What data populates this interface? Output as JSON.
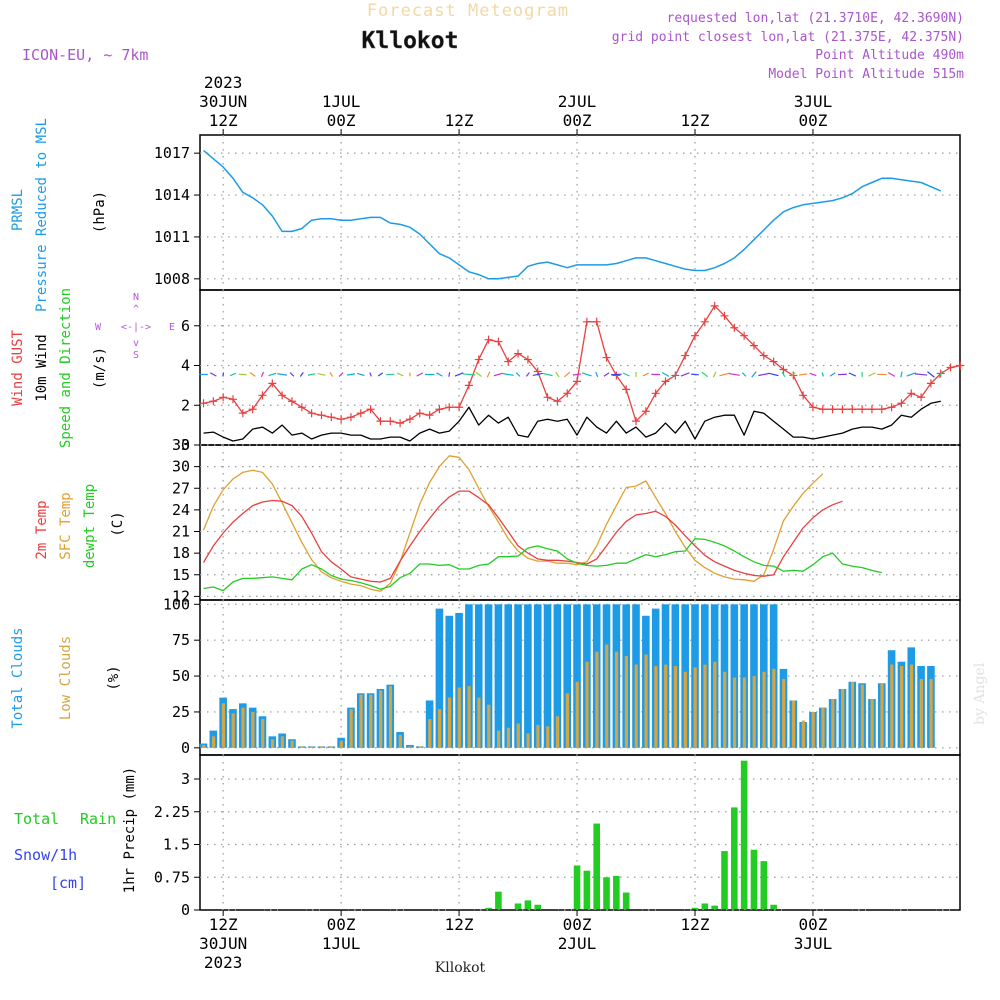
{
  "header": {
    "title": "Forecast Meteogram",
    "location": "Kllokot",
    "model": "ICON-EU, ~ 7km",
    "requested": "requested lon,lat (21.3710E, 42.3690N)",
    "grid_point": "grid point closest lon,lat (21.375E, 42.375N)",
    "point_altitude": "Point Altitude 490m",
    "model_altitude": "Model Point Altitude 515m"
  },
  "footer": {
    "location": "Kllokot",
    "credit": "by Angel"
  },
  "time_axis": {
    "top": [
      {
        "idx": 2,
        "lines": [
          "2023",
          "30JUN",
          "12Z"
        ]
      },
      {
        "idx": 14,
        "lines": [
          "1JUL",
          "00Z"
        ]
      },
      {
        "idx": 26,
        "lines": [
          "12Z"
        ]
      },
      {
        "idx": 38,
        "lines": [
          "2JUL",
          "00Z"
        ]
      },
      {
        "idx": 50,
        "lines": [
          "12Z"
        ]
      },
      {
        "idx": 62,
        "lines": [
          "3JUL",
          "00Z"
        ]
      }
    ],
    "bottom": [
      {
        "idx": 2,
        "lines": [
          "12Z",
          "30JUN",
          "2023"
        ]
      },
      {
        "idx": 14,
        "lines": [
          "00Z",
          "1JUL"
        ]
      },
      {
        "idx": 26,
        "lines": [
          "12Z"
        ]
      },
      {
        "idx": 38,
        "lines": [
          "00Z",
          "2JUL"
        ]
      },
      {
        "idx": 50,
        "lines": [
          "12Z"
        ]
      },
      {
        "idx": 62,
        "lines": [
          "00Z",
          "3JUL"
        ]
      }
    ]
  },
  "panels": {
    "pressure": {
      "labels": [
        "PRMSL",
        "Pressure Reduced to MSL",
        "(hPa)"
      ],
      "ticks": [
        "1008",
        "1011",
        "1014",
        "1017"
      ]
    },
    "wind": {
      "labels": [
        "Wind GUST",
        "10m Wind",
        "Speed and Direction",
        "(m/s)"
      ],
      "compass": {
        "n": "N",
        "s": "S",
        "e": "E",
        "w": "W",
        "arrows": "<-|->",
        "up": "^",
        "down": "v"
      },
      "ticks": [
        "0",
        "2",
        "4",
        "6"
      ]
    },
    "temp": {
      "labels": [
        "2m Temp",
        "SFC Temp",
        "dewpt Temp",
        "(C)"
      ],
      "ticks": [
        "12",
        "15",
        "18",
        "21",
        "24",
        "27",
        "30",
        "33"
      ]
    },
    "clouds": {
      "labels": [
        "Total Clouds",
        "Low Clouds",
        "(%)"
      ],
      "ticks": [
        "0",
        "25",
        "50",
        "75",
        "100"
      ]
    },
    "precip": {
      "labels": [
        "Total",
        "Rain",
        "Snow/1h",
        "[cm]",
        "1hr Precip (mm)"
      ],
      "ticks": [
        "0",
        "0.75",
        "1.5",
        "2.25",
        "3"
      ]
    }
  },
  "colors": {
    "pressure": "#1e9be6",
    "gust": "#e84040",
    "wind": "#000000",
    "t2m": "#e84040",
    "tsfc": "#e0a030",
    "dewpt": "#22cc22",
    "total_cloud": "#1e9be6",
    "low_cloud": "#d4a544",
    "rain": "#22cc22",
    "snow": "#3344ee",
    "compass": "#bb55dd",
    "header_purple": "#aa55cc"
  },
  "chart_data": [
    {
      "type": "line",
      "title": "PRMSL Pressure Reduced to MSL",
      "ylabel": "hPa",
      "ylim": [
        1007.2,
        1018.3
      ],
      "x": "hourly steps from 30JUN 10Z to 3JUL 16Z (steps 0-78)",
      "series": [
        {
          "name": "PRMSL",
          "values": [
            1017.2,
            1016.6,
            1016,
            1015.2,
            1014.2,
            1013.8,
            1013.3,
            1012.5,
            1011.4,
            1011.4,
            1011.6,
            1012.2,
            1012.3,
            1012.3,
            1012.2,
            1012.2,
            1012.3,
            1012.4,
            1012.4,
            1012,
            1011.9,
            1011.7,
            1011.2,
            1010.5,
            1009.8,
            1009.5,
            1009,
            1008.5,
            1008.3,
            1008,
            1008,
            1008.1,
            1008.2,
            1008.9,
            1009.1,
            1009.2,
            1009,
            1008.8,
            1009,
            1009,
            1009,
            1009,
            1009.1,
            1009.3,
            1009.5,
            1009.5,
            1009.3,
            1009.1,
            1008.9,
            1008.7,
            1008.6,
            1008.6,
            1008.8,
            1009.1,
            1009.5,
            1010.1,
            1010.8,
            1011.5,
            1012.2,
            1012.8,
            1013.1,
            1013.3,
            1013.4,
            1013.5,
            1013.6,
            1013.8,
            1014.1,
            1014.6,
            1014.9,
            1015.2,
            1015.2,
            1015.1,
            1015,
            1014.9,
            1014.6,
            1014.3
          ]
        }
      ]
    },
    {
      "type": "line",
      "title": "Wind GUST / 10m Wind Speed and Direction",
      "ylabel": "m/s",
      "ylim": [
        0,
        7.8
      ],
      "series": [
        {
          "name": "Wind GUST",
          "values": [
            2.1,
            2.2,
            2.4,
            2.3,
            1.6,
            1.8,
            2.5,
            3.1,
            2.5,
            2.2,
            1.9,
            1.6,
            1.5,
            1.4,
            1.3,
            1.4,
            1.6,
            1.8,
            1.2,
            1.2,
            1.1,
            1.3,
            1.6,
            1.5,
            1.8,
            1.9,
            1.9,
            3.0,
            4.3,
            5.3,
            5.2,
            4.2,
            4.6,
            4.3,
            3.7,
            2.4,
            2.2,
            2.6,
            3.2,
            6.2,
            6.2,
            4.4,
            3.5,
            2.8,
            1.2,
            1.7,
            2.6,
            3.2,
            3.5,
            4.5,
            5.5,
            6.2,
            7.0,
            6.5,
            5.9,
            5.5,
            5.0,
            4.5,
            4.2,
            3.8,
            3.5,
            2.5,
            1.9,
            1.8,
            1.8,
            1.8,
            1.8,
            1.8,
            1.8,
            1.8,
            1.9,
            2.1,
            2.6,
            2.4,
            3.1,
            3.6,
            3.9,
            4.0
          ]
        },
        {
          "name": "10m Wind",
          "values": [
            0.6,
            0.65,
            0.4,
            0.2,
            0.3,
            0.8,
            0.9,
            0.6,
            1.0,
            0.5,
            0.6,
            0.3,
            0.5,
            0.6,
            0.6,
            0.5,
            0.5,
            0.3,
            0.3,
            0.4,
            0.4,
            0.2,
            0.6,
            0.8,
            0.6,
            0.7,
            1.2,
            1.9,
            1.0,
            1.5,
            1.1,
            1.4,
            0.5,
            0.4,
            1.2,
            1.3,
            1.2,
            1.3,
            0.5,
            1.4,
            0.9,
            0.6,
            1.2,
            0.6,
            0.9,
            0.4,
            0.6,
            1.1,
            0.6,
            1.2,
            0.3,
            1.2,
            1.4,
            1.5,
            1.5,
            0.5,
            1.7,
            1.6,
            1.2,
            0.8,
            0.4,
            0.4,
            0.3,
            0.4,
            0.5,
            0.6,
            0.8,
            0.9,
            0.9,
            0.8,
            1.0,
            1.5,
            1.4,
            1.8,
            2.1,
            2.2
          ]
        }
      ]
    },
    {
      "type": "line",
      "title": "2m Temp / SFC Temp / dewpt Temp",
      "ylabel": "C",
      "ylim": [
        11.5,
        33
      ],
      "series": [
        {
          "name": "2m Temp",
          "values": [
            16.7,
            19.0,
            20.8,
            22.3,
            23.5,
            24.6,
            25.1,
            25.3,
            25.2,
            24.6,
            23.1,
            20.8,
            18.2,
            16.8,
            15.8,
            14.7,
            14.4,
            14.1,
            14.0,
            14.5,
            16.9,
            19.0,
            21.0,
            22.8,
            24.5,
            25.8,
            26.6,
            26.6,
            25.7,
            24.7,
            22.9,
            21.0,
            19.0,
            18.0,
            17.2,
            17.0,
            17.0,
            16.9,
            16.7,
            16.5,
            17.2,
            19.0,
            20.9,
            22.4,
            23.3,
            23.5,
            23.8,
            23.1,
            21.9,
            20.4,
            19.0,
            17.7,
            16.8,
            16.2,
            15.6,
            15.2,
            14.9,
            14.8,
            15.0,
            17.5,
            19.5,
            21.5,
            22.9,
            24.0,
            24.7,
            25.2
          ]
        },
        {
          "name": "SFC Temp",
          "values": [
            21.2,
            24.5,
            26.8,
            28.3,
            29.2,
            29.5,
            29.2,
            27.6,
            25.0,
            22.2,
            19.5,
            17.1,
            15.4,
            14.6,
            14.1,
            13.7,
            13.5,
            13.0,
            12.7,
            13.8,
            16.8,
            20.8,
            24.8,
            27.8,
            30.0,
            31.5,
            31.3,
            29.6,
            27.0,
            24.5,
            22.3,
            20.0,
            18.3,
            17.3,
            16.9,
            16.9,
            16.6,
            16.6,
            16.4,
            16.8,
            19.0,
            22.0,
            24.6,
            27.1,
            27.3,
            28.0,
            25.7,
            23.5,
            21.0,
            18.8,
            17.0,
            16.0,
            15.2,
            14.7,
            14.4,
            14.3,
            14.1,
            15.0,
            18.5,
            22.5,
            24.5,
            26.3,
            27.7,
            29.0
          ]
        },
        {
          "name": "dewpt Temp",
          "values": [
            13.1,
            13.3,
            12.8,
            14.0,
            14.5,
            14.5,
            14.6,
            14.7,
            14.5,
            14.3,
            15.8,
            16.4,
            15.8,
            14.9,
            14.4,
            14.2,
            13.9,
            13.5,
            13.0,
            13.4,
            14.6,
            15.2,
            16.5,
            16.5,
            16.3,
            16.4,
            15.8,
            15.8,
            16.3,
            16.5,
            17.5,
            17.5,
            17.6,
            18.7,
            19.0,
            18.6,
            18.3,
            17.2,
            16.6,
            16.3,
            16.2,
            16.3,
            16.6,
            16.6,
            17.2,
            17.8,
            17.5,
            17.8,
            18.2,
            18.3,
            20.0,
            19.9,
            19.5,
            19.0,
            18.3,
            17.5,
            16.8,
            16.3,
            16.2,
            15.5,
            15.6,
            15.5,
            16.4,
            17.5,
            18.0,
            16.5,
            16.2,
            16.0,
            15.6,
            15.3
          ]
        }
      ]
    },
    {
      "type": "bar",
      "title": "Total Clouds / Low Clouds",
      "ylabel": "%",
      "ylim": [
        -5,
        103
      ],
      "series": [
        {
          "name": "Total Clouds",
          "values": [
            3,
            12,
            35,
            27,
            31,
            28,
            22,
            8,
            10,
            6,
            1,
            1,
            1,
            1,
            7,
            28,
            38,
            38,
            41,
            44,
            11,
            2,
            1,
            33,
            97,
            92,
            94,
            100,
            100,
            100,
            100,
            100,
            100,
            100,
            100,
            100,
            100,
            100,
            100,
            100,
            100,
            100,
            100,
            100,
            100,
            92,
            97,
            100,
            100,
            100,
            100,
            100,
            100,
            100,
            100,
            100,
            100,
            100,
            100,
            55,
            33,
            18,
            25,
            28,
            34,
            41,
            46,
            45,
            34,
            45,
            68,
            60,
            70,
            57,
            57
          ]
        },
        {
          "name": "Low Clouds",
          "values": [
            2,
            8,
            31,
            24,
            28,
            25,
            20,
            6,
            8,
            5,
            1,
            1,
            1,
            1,
            5,
            27,
            37,
            37,
            40,
            43,
            9,
            1,
            1,
            20,
            27,
            35,
            42,
            43,
            35,
            30,
            12,
            14,
            17,
            10,
            16,
            15,
            22,
            38,
            46,
            60,
            67,
            72,
            67,
            64,
            58,
            65,
            57,
            58,
            57,
            53,
            56,
            58,
            60,
            53,
            49,
            49,
            50,
            53,
            55,
            48,
            33,
            19,
            25,
            28,
            34,
            41,
            46,
            44,
            34,
            45,
            58,
            57,
            58,
            48,
            48
          ]
        }
      ]
    },
    {
      "type": "bar",
      "title": "1hr Precip",
      "ylabel": "mm",
      "ylim": [
        0,
        3.55
      ],
      "series": [
        {
          "name": "Total Rain",
          "values": [
            0,
            0,
            0,
            0,
            0,
            0,
            0,
            0,
            0,
            0,
            0,
            0,
            0,
            0,
            0,
            0,
            0,
            0,
            0,
            0,
            0,
            0,
            0,
            0,
            0,
            0,
            0,
            0,
            0,
            0.05,
            0.42,
            0,
            0.15,
            0.22,
            0.12,
            0,
            0,
            0,
            1.02,
            0.9,
            1.98,
            0.75,
            0.78,
            0.4,
            0,
            0,
            0,
            0,
            0,
            0,
            0.05,
            0.15,
            0.1,
            1.35,
            2.35,
            3.42,
            1.38,
            1.12,
            0.12,
            0,
            0,
            0,
            0,
            0,
            0,
            0,
            0,
            0,
            0,
            0,
            0,
            0,
            0,
            0,
            0,
            0
          ]
        }
      ]
    }
  ]
}
